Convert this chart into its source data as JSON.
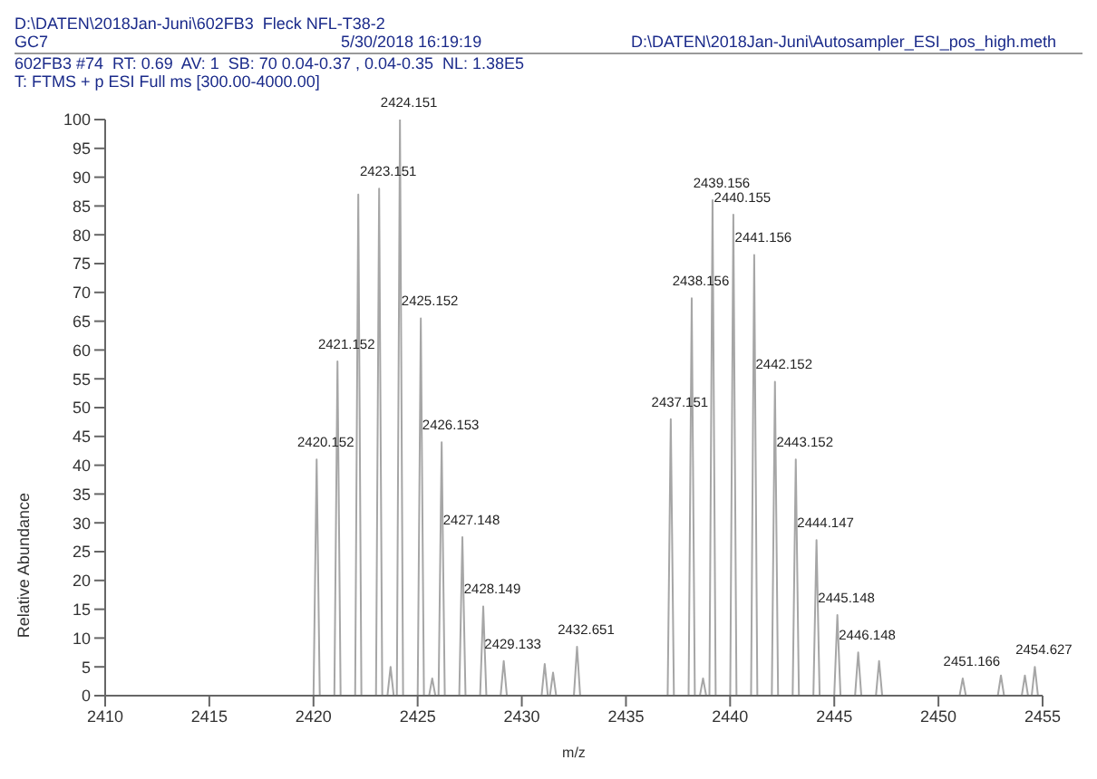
{
  "chart_data": {
    "type": "line",
    "annotations": [
      "D:\\DATEN\\2018Jan-Juni\\602FB3  Fleck NFL-T38-2",
      "GC7",
      "5/30/2018 16:19:19",
      "D:\\DATEN\\2018Jan-Juni\\Autosampler_ESI_pos_high.meth",
      "602FB3 #74  RT: 0.69  AV: 1  SB: 70 0.04-0.37 , 0.04-0.35  NL: 1.38E5",
      "T: FTMS + p ESI Full ms [300.00-4000.00]",
      {
        "text": "2420.152",
        "x": 2420.152,
        "y": 41
      },
      {
        "text": "2421.152",
        "x": 2421.152,
        "y": 58
      },
      {
        "text": "2423.151",
        "x": 2423.151,
        "y": 88
      },
      {
        "text": "2424.151",
        "x": 2424.151,
        "y": 100
      },
      {
        "text": "2425.152",
        "x": 2425.152,
        "y": 65.5
      },
      {
        "text": "2426.153",
        "x": 2426.153,
        "y": 44
      },
      {
        "text": "2427.148",
        "x": 2427.148,
        "y": 27.5
      },
      {
        "text": "2428.149",
        "x": 2428.149,
        "y": 15.5
      },
      {
        "text": "2429.133",
        "x": 2429.133,
        "y": 6
      },
      {
        "text": "2432.651",
        "x": 2432.651,
        "y": 8.5
      },
      {
        "text": "2437.151",
        "x": 2437.151,
        "y": 48
      },
      {
        "text": "2438.156",
        "x": 2438.156,
        "y": 69
      },
      {
        "text": "2439.156",
        "x": 2439.156,
        "y": 86
      },
      {
        "text": "2440.155",
        "x": 2440.155,
        "y": 83.5
      },
      {
        "text": "2441.156",
        "x": 2441.156,
        "y": 76.5
      },
      {
        "text": "2442.152",
        "x": 2442.152,
        "y": 54.5
      },
      {
        "text": "2443.152",
        "x": 2443.152,
        "y": 41
      },
      {
        "text": "2444.147",
        "x": 2444.147,
        "y": 27
      },
      {
        "text": "2445.148",
        "x": 2445.148,
        "y": 14
      },
      {
        "text": "2446.148",
        "x": 2446.148,
        "y": 7.5
      },
      {
        "text": "2451.166",
        "x": 2451.166,
        "y": 3
      },
      {
        "text": "2454.627",
        "x": 2454.627,
        "y": 5
      }
    ],
    "xlabel": "m/z",
    "ylabel": "Relative Abundance",
    "color": "#a6a6a6",
    "xlim": [
      2410,
      2455
    ],
    "xticks": [
      2410,
      2415,
      2420,
      2425,
      2430,
      2435,
      2440,
      2445,
      2450,
      2455
    ],
    "ylim": [
      0,
      100
    ],
    "yticks": [
      0,
      5,
      10,
      15,
      20,
      25,
      30,
      35,
      40,
      45,
      50,
      55,
      60,
      65,
      70,
      75,
      80,
      85,
      90,
      95,
      100
    ],
    "x": [
      2410,
      2420.002,
      2420.152,
      2420.302,
      2421.002,
      2421.152,
      2421.302,
      2422.0,
      2422.15,
      2422.3,
      2423.001,
      2423.151,
      2423.301,
      2423.55,
      2423.7,
      2423.85,
      2424.001,
      2424.151,
      2424.301,
      2425.002,
      2425.152,
      2425.302,
      2425.55,
      2425.7,
      2425.85,
      2426.003,
      2426.153,
      2426.303,
      2426.998,
      2427.148,
      2427.298,
      2427.999,
      2428.149,
      2428.299,
      2428.983,
      2429.133,
      2429.283,
      2430.95,
      2431.1,
      2431.25,
      2431.35,
      2431.5,
      2431.65,
      2432.501,
      2432.651,
      2432.801,
      2437.001,
      2437.151,
      2437.301,
      2438.006,
      2438.156,
      2438.306,
      2438.55,
      2438.7,
      2438.85,
      2439.006,
      2439.156,
      2439.306,
      2440.005,
      2440.155,
      2440.305,
      2441.006,
      2441.156,
      2441.306,
      2442.002,
      2442.152,
      2442.302,
      2443.002,
      2443.152,
      2443.302,
      2443.997,
      2444.147,
      2444.297,
      2444.998,
      2445.148,
      2445.298,
      2445.998,
      2446.148,
      2446.298,
      2447.0,
      2447.15,
      2447.3,
      2451.016,
      2451.166,
      2451.316,
      2452.85,
      2453.0,
      2453.15,
      2454.0,
      2454.15,
      2454.3,
      2454.477,
      2454.627,
      2454.777,
      2455
    ],
    "values": [
      0,
      0,
      41,
      0,
      0,
      58,
      0,
      0,
      87,
      0,
      0,
      88,
      0,
      0,
      5,
      0,
      0,
      100,
      0,
      0,
      65.5,
      0,
      0,
      3,
      0,
      0,
      44,
      0,
      0,
      27.5,
      0,
      0,
      15.5,
      0,
      0,
      6,
      0,
      0,
      5.5,
      0,
      0,
      4,
      0,
      0,
      8.5,
      0,
      0,
      48,
      0,
      0,
      69,
      0,
      0,
      3,
      0,
      0,
      86,
      0,
      0,
      83.5,
      0,
      0,
      76.5,
      0,
      0,
      54.5,
      0,
      0,
      41,
      0,
      0,
      27,
      0,
      0,
      14,
      0,
      0,
      7.5,
      0,
      0,
      6,
      0,
      0,
      3,
      0,
      0,
      3.5,
      0,
      0,
      3.5,
      0,
      0,
      5,
      0,
      0
    ]
  }
}
